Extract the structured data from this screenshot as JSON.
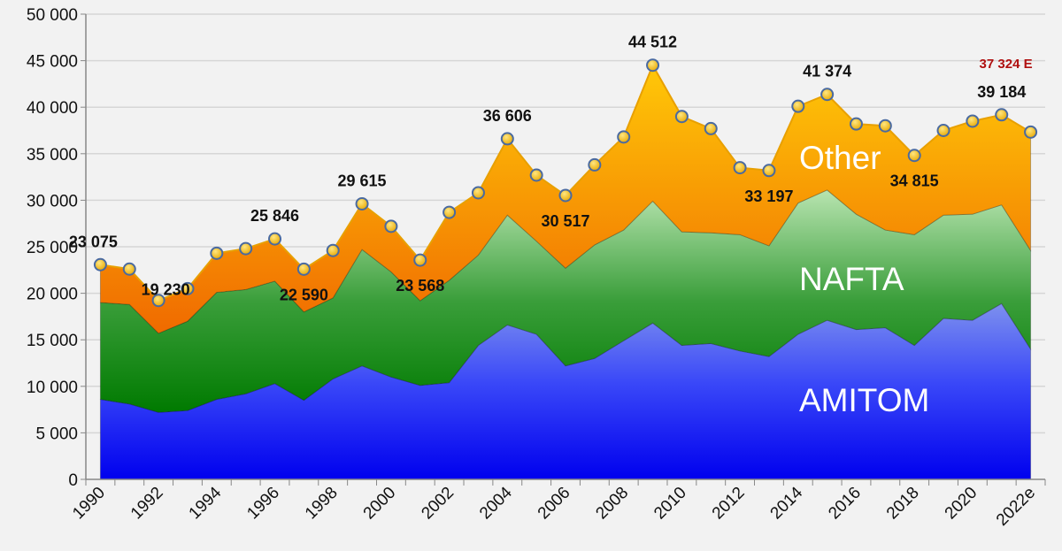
{
  "chart_data": {
    "type": "area",
    "stacked": true,
    "title": "",
    "xlabel": "",
    "ylabel": "",
    "ylim": [
      0,
      50000
    ],
    "yticks": [
      0,
      5000,
      10000,
      15000,
      20000,
      25000,
      30000,
      35000,
      40000,
      45000,
      50000
    ],
    "ytick_labels": [
      "0",
      "5 000",
      "10 000",
      "15 000",
      "20 000",
      "25 000",
      "30 000",
      "35 000",
      "40 000",
      "45 000",
      "50 000"
    ],
    "grid": true,
    "x": [
      "1990",
      "1991",
      "1992",
      "1993",
      "1994",
      "1995",
      "1996",
      "1997",
      "1998",
      "1999",
      "2000",
      "2001",
      "2002",
      "2003",
      "2004",
      "2005",
      "2006",
      "2007",
      "2008",
      "2009",
      "2010",
      "2011",
      "2012",
      "2013",
      "2014",
      "2015",
      "2016",
      "2017",
      "2018",
      "2019",
      "2020",
      "2021",
      "2022e"
    ],
    "xtick_labels": [
      "1990",
      "1992",
      "1994",
      "1996",
      "1998",
      "2000",
      "2002",
      "2004",
      "2006",
      "2008",
      "2010",
      "2012",
      "2014",
      "2016",
      "2018",
      "2020",
      "2022e"
    ],
    "series": [
      {
        "name": "AMITOM",
        "color": "#1a1af5",
        "values": [
          8600,
          8100,
          7200,
          7400,
          8600,
          9200,
          10300,
          8500,
          10800,
          12200,
          11000,
          10100,
          10400,
          14400,
          16600,
          15600,
          12200,
          13000,
          14900,
          16800,
          14400,
          14600,
          13800,
          13200,
          15600,
          17100,
          16100,
          16300,
          14400,
          17300,
          17100,
          18900,
          14000
        ]
      },
      {
        "name": "NAFTA",
        "color": "#2e9a2e",
        "values": [
          10400,
          10700,
          8500,
          9600,
          11500,
          11200,
          11000,
          9500,
          8700,
          12500,
          11300,
          9100,
          11000,
          9700,
          11800,
          10000,
          10500,
          12200,
          11900,
          13100,
          12200,
          11900,
          12500,
          11900,
          14100,
          14000,
          12400,
          10500,
          11900,
          11100,
          11400,
          10600,
          10600
        ]
      },
      {
        "name": "Other",
        "color": "#f59010",
        "values": [
          4075,
          3800,
          3530,
          3500,
          4200,
          4400,
          4546,
          4590,
          5100,
          4915,
          4900,
          4368,
          7300,
          6700,
          8206,
          7100,
          7817,
          8600,
          10000,
          14612,
          12400,
          11200,
          7200,
          8097,
          10400,
          10274,
          9700,
          11200,
          8515,
          9100,
          10000,
          9684,
          12724
        ]
      }
    ],
    "totals": [
      23075,
      22600,
      19230,
      20500,
      24300,
      24800,
      25846,
      22590,
      24600,
      29615,
      27200,
      23568,
      28700,
      30800,
      36606,
      32700,
      30517,
      33800,
      36800,
      44512,
      39000,
      37700,
      33500,
      33197,
      40100,
      41374,
      38200,
      38000,
      34815,
      37500,
      38500,
      39184,
      37324
    ],
    "data_labels": [
      {
        "x": "1990",
        "text": "23 075",
        "pos": "above"
      },
      {
        "x": "1992",
        "text": "19 230",
        "pos": "right"
      },
      {
        "x": "1996",
        "text": "25 846",
        "pos": "above"
      },
      {
        "x": "1997",
        "text": "22 590",
        "pos": "below"
      },
      {
        "x": "1999",
        "text": "29 615",
        "pos": "above"
      },
      {
        "x": "2001",
        "text": "23 568",
        "pos": "below"
      },
      {
        "x": "2004",
        "text": "36 606",
        "pos": "above"
      },
      {
        "x": "2006",
        "text": "30 517",
        "pos": "below"
      },
      {
        "x": "2009",
        "text": "44 512",
        "pos": "above"
      },
      {
        "x": "2013",
        "text": "33 197",
        "pos": "below"
      },
      {
        "x": "2015",
        "text": "41 374",
        "pos": "above"
      },
      {
        "x": "2018",
        "text": "34 815",
        "pos": "below"
      },
      {
        "x": "2021",
        "text": "39 184",
        "pos": "above"
      },
      {
        "x": "2022e",
        "text": "37 324 E",
        "pos": "top",
        "color": "#b01010"
      }
    ],
    "legend": "inline labels inside areas"
  }
}
